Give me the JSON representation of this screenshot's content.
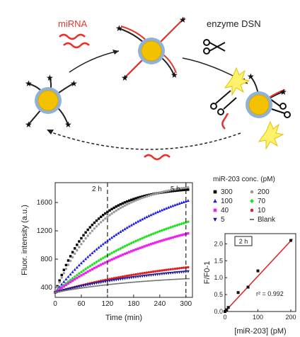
{
  "schematic": {
    "mirna_label": "miRNA",
    "enzyme_label": "enzyme DSN",
    "colors": {
      "probe": "#222222",
      "mirna": "#e8322b",
      "particle": "#f2c200",
      "shell": "#8eb2d8"
    },
    "icons": [
      "gold-nanoparticle-icon",
      "mirna-strand-icon",
      "scissors-icon",
      "fluorophore-star-icon",
      "flash-icon"
    ]
  },
  "chart_data": [
    {
      "type": "scatter",
      "xlabel": "Time (min)",
      "ylabel": "Fluor. intensity (a.u.)",
      "xlim": [
        0,
        315
      ],
      "ylim": [
        260,
        1880
      ],
      "xticks": [
        0,
        60,
        120,
        180,
        240,
        300
      ],
      "yticks": [
        400,
        800,
        1200,
        1600
      ],
      "annotations": [
        {
          "label": "2 h",
          "x": 120
        },
        {
          "label": "5 h",
          "x": 300
        }
      ],
      "legend_title": "miR-203 conc. (pM)",
      "legend_placement": "right",
      "series": [
        {
          "name": "300",
          "color": "#000000",
          "marker": "square",
          "y0": 330,
          "ymax": 1820,
          "k": 0.012
        },
        {
          "name": "200",
          "color": "#999999",
          "marker": "circle",
          "y0": 330,
          "ymax": 1900,
          "k": 0.0095
        },
        {
          "name": "100",
          "color": "#1a1aee",
          "marker": "triangle-up",
          "y0": 330,
          "ymax": 2050,
          "k": 0.0046
        },
        {
          "name": "70",
          "color": "#22e022",
          "marker": "diamond",
          "y0": 330,
          "ymax": 1850,
          "k": 0.0035
        },
        {
          "name": "40",
          "color": "#ee22ee",
          "marker": "square",
          "y0": 330,
          "ymax": 1600,
          "k": 0.0035
        },
        {
          "name": "10",
          "color": "#e02020",
          "marker": "circle",
          "y0": 330,
          "ymax": 900,
          "k": 0.0032
        },
        {
          "name": "5",
          "color": "#1a1a99",
          "marker": "triangle-down",
          "y0": 330,
          "ymax": 760,
          "k": 0.0038
        },
        {
          "name": "Blank",
          "color": "#777777",
          "marker": "dash",
          "y0": 330,
          "ymax": 590,
          "k": 0.0045
        }
      ]
    },
    {
      "type": "scatter",
      "title": "2 h",
      "xlabel": "[miR-203] (pM)",
      "ylabel": "F/F0-1",
      "xlim": [
        0,
        215
      ],
      "ylim": [
        0,
        2.3
      ],
      "xticks": [
        0,
        100,
        200
      ],
      "yticks": [
        0.0,
        0.5,
        1.0,
        1.5,
        2.0
      ],
      "points": [
        [
          0,
          0.0
        ],
        [
          5,
          0.05
        ],
        [
          10,
          0.12
        ],
        [
          40,
          0.56
        ],
        [
          70,
          0.72
        ],
        [
          100,
          1.2
        ],
        [
          200,
          2.1
        ]
      ],
      "fit": {
        "x": [
          0,
          205
        ],
        "y": [
          0.0,
          2.14
        ],
        "color": "#e02020"
      },
      "r2_text": "r² = 0.992"
    }
  ]
}
